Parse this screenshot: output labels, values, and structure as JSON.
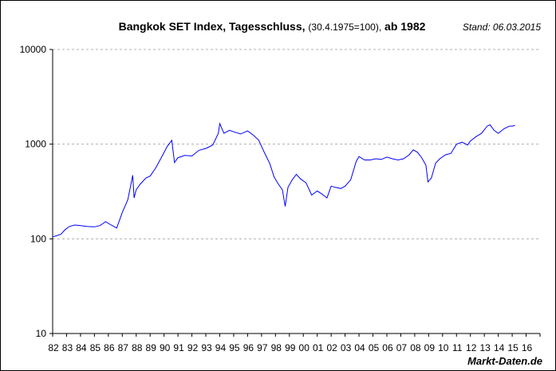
{
  "chart_data": {
    "type": "line",
    "title": "Bangkok SET Index, Tagesschluss,",
    "title_note": "(30.4.1975=100),",
    "title_suffix": "ab 1982",
    "stand": "Stand: 06.03.2015",
    "source": "Markt-Daten.de",
    "xlabel": "",
    "ylabel": "",
    "yscale": "log",
    "ylim": [
      10,
      10000
    ],
    "xlim": [
      1982,
      2017
    ],
    "yticks": [
      10,
      100,
      1000,
      10000
    ],
    "ytick_labels": [
      "10",
      "100",
      "1000",
      "10000"
    ],
    "xtick_labels": [
      "82",
      "83",
      "84",
      "85",
      "86",
      "87",
      "88",
      "89",
      "90",
      "91",
      "92",
      "93",
      "94",
      "95",
      "96",
      "97",
      "98",
      "99",
      "00",
      "01",
      "02",
      "03",
      "04",
      "05",
      "06",
      "07",
      "08",
      "09",
      "10",
      "11",
      "12",
      "13",
      "14",
      "15",
      "16"
    ],
    "grid": "horizontal-dashed",
    "series": [
      {
        "name": "SET Index",
        "color": "#0000ff",
        "x": [
          1982.0,
          1982.3,
          1982.6,
          1982.9,
          1983.2,
          1983.6,
          1984.0,
          1984.5,
          1985.0,
          1985.4,
          1985.8,
          1986.2,
          1986.6,
          1987.0,
          1987.4,
          1987.75,
          1987.85,
          1988.0,
          1988.3,
          1988.7,
          1989.0,
          1989.4,
          1989.8,
          1990.2,
          1990.55,
          1990.75,
          1991.0,
          1991.5,
          1992.0,
          1992.5,
          1993.0,
          1993.5,
          1993.9,
          1994.0,
          1994.3,
          1994.7,
          1995.0,
          1995.5,
          1996.0,
          1996.4,
          1996.8,
          1997.2,
          1997.6,
          1997.9,
          1998.2,
          1998.5,
          1998.7,
          1998.9,
          1999.2,
          1999.5,
          1999.8,
          2000.2,
          2000.6,
          2001.0,
          2001.3,
          2001.7,
          2002.0,
          2002.3,
          2002.7,
          2003.0,
          2003.4,
          2003.8,
          2004.0,
          2004.4,
          2004.8,
          2005.2,
          2005.6,
          2006.0,
          2006.4,
          2006.8,
          2007.2,
          2007.6,
          2007.9,
          2008.2,
          2008.5,
          2008.8,
          2008.95,
          2009.2,
          2009.5,
          2009.8,
          2010.2,
          2010.6,
          2011.0,
          2011.4,
          2011.8,
          2012.0,
          2012.4,
          2012.8,
          2013.2,
          2013.4,
          2013.7,
          2014.0,
          2014.4,
          2014.8,
          2015.0,
          2015.2
        ],
        "y": [
          105,
          108,
          112,
          125,
          135,
          140,
          138,
          135,
          134,
          138,
          152,
          140,
          130,
          190,
          260,
          470,
          270,
          330,
          380,
          440,
          460,
          560,
          720,
          930,
          1100,
          640,
          720,
          760,
          750,
          860,
          900,
          980,
          1300,
          1650,
          1300,
          1400,
          1350,
          1280,
          1380,
          1250,
          1100,
          820,
          620,
          450,
          380,
          330,
          220,
          350,
          420,
          480,
          430,
          390,
          290,
          320,
          300,
          270,
          360,
          350,
          340,
          360,
          420,
          660,
          740,
          680,
          680,
          700,
          690,
          730,
          700,
          680,
          700,
          770,
          870,
          820,
          720,
          600,
          400,
          440,
          630,
          700,
          770,
          800,
          1000,
          1050,
          980,
          1080,
          1200,
          1300,
          1550,
          1600,
          1400,
          1300,
          1450,
          1550,
          1550,
          1580
        ]
      }
    ]
  }
}
